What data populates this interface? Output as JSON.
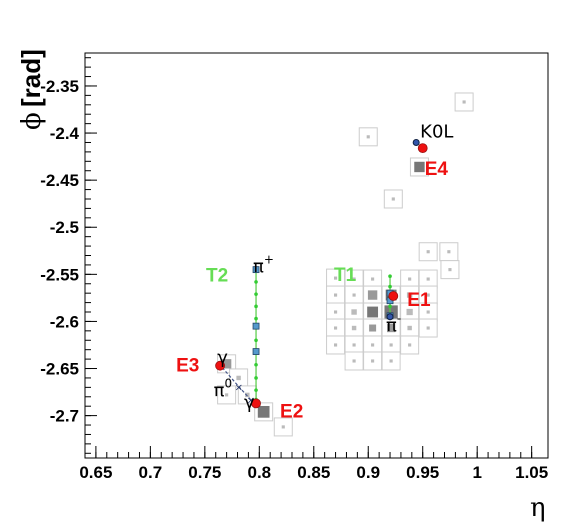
{
  "chart_data": {
    "type": "scatter",
    "xlabel": "η",
    "ylabel_symbol": "ϕ",
    "ylabel_unit": "[rad]",
    "xlim": [
      0.64,
      1.065
    ],
    "ylim": [
      -2.745,
      -2.315
    ],
    "xticks": [
      {
        "v": 0.65,
        "label": "0.65"
      },
      {
        "v": 0.7,
        "label": "0.7"
      },
      {
        "v": 0.75,
        "label": "0.75"
      },
      {
        "v": 0.8,
        "label": "0.8"
      },
      {
        "v": 0.85,
        "label": "0.85"
      },
      {
        "v": 0.9,
        "label": "0.9"
      },
      {
        "v": 0.95,
        "label": "0.95"
      },
      {
        "v": 1.0,
        "label": "1"
      },
      {
        "v": 1.05,
        "label": "1.05"
      }
    ],
    "yticks": [
      {
        "v": -2.35,
        "label": "-2.35"
      },
      {
        "v": -2.4,
        "label": "-2.4"
      },
      {
        "v": -2.45,
        "label": "-2.45"
      },
      {
        "v": -2.5,
        "label": "-2.5"
      },
      {
        "v": -2.55,
        "label": "-2.55"
      },
      {
        "v": -2.6,
        "label": "-2.6"
      },
      {
        "v": -2.65,
        "label": "-2.65"
      },
      {
        "v": -2.7,
        "label": "-2.7"
      }
    ],
    "grid": false,
    "cells": [
      {
        "x": 0.988,
        "y": -2.367,
        "e": 0.05
      },
      {
        "x": 0.9,
        "y": -2.404,
        "e": 0.05
      },
      {
        "x": 0.947,
        "y": -2.436,
        "e": 0.55
      },
      {
        "x": 0.923,
        "y": -2.47,
        "e": 0.05
      },
      {
        "x": 0.955,
        "y": -2.526,
        "e": 0.05
      },
      {
        "x": 0.974,
        "y": -2.526,
        "e": 0.05
      },
      {
        "x": 0.975,
        "y": -2.545,
        "e": 0.05
      },
      {
        "x": 0.87,
        "y": -2.554,
        "e": 0.05
      },
      {
        "x": 0.887,
        "y": -2.555,
        "e": 0.05
      },
      {
        "x": 0.904,
        "y": -2.555,
        "e": 0.05
      },
      {
        "x": 0.938,
        "y": -2.555,
        "e": 0.05
      },
      {
        "x": 0.955,
        "y": -2.555,
        "e": 0.05
      },
      {
        "x": 0.87,
        "y": -2.572,
        "e": 0.05
      },
      {
        "x": 0.887,
        "y": -2.572,
        "e": 0.05
      },
      {
        "x": 0.904,
        "y": -2.572,
        "e": 0.45
      },
      {
        "x": 0.921,
        "y": -2.572,
        "e": 0.6
      },
      {
        "x": 0.938,
        "y": -2.572,
        "e": 0.15
      },
      {
        "x": 0.955,
        "y": -2.572,
        "e": 0.05
      },
      {
        "x": 0.87,
        "y": -2.59,
        "e": 0.05
      },
      {
        "x": 0.887,
        "y": -2.59,
        "e": 0.15
      },
      {
        "x": 0.904,
        "y": -2.59,
        "e": 0.6
      },
      {
        "x": 0.921,
        "y": -2.59,
        "e": 0.9
      },
      {
        "x": 0.938,
        "y": -2.59,
        "e": 0.2
      },
      {
        "x": 0.955,
        "y": -2.59,
        "e": 0.05
      },
      {
        "x": 0.87,
        "y": -2.607,
        "e": 0.05
      },
      {
        "x": 0.887,
        "y": -2.607,
        "e": 0.1
      },
      {
        "x": 0.904,
        "y": -2.607,
        "e": 0.25
      },
      {
        "x": 0.921,
        "y": -2.607,
        "e": 0.35
      },
      {
        "x": 0.938,
        "y": -2.607,
        "e": 0.1
      },
      {
        "x": 0.955,
        "y": -2.607,
        "e": 0.05
      },
      {
        "x": 0.87,
        "y": -2.625,
        "e": 0.05
      },
      {
        "x": 0.887,
        "y": -2.625,
        "e": 0.05
      },
      {
        "x": 0.904,
        "y": -2.625,
        "e": 0.05
      },
      {
        "x": 0.921,
        "y": -2.625,
        "e": 0.05
      },
      {
        "x": 0.938,
        "y": -2.625,
        "e": 0.05
      },
      {
        "x": 0.887,
        "y": -2.642,
        "e": 0.05
      },
      {
        "x": 0.904,
        "y": -2.642,
        "e": 0.05
      },
      {
        "x": 0.921,
        "y": -2.642,
        "e": 0.05
      },
      {
        "x": 0.77,
        "y": -2.645,
        "e": 0.45
      },
      {
        "x": 0.781,
        "y": -2.66,
        "e": 0.1
      },
      {
        "x": 0.77,
        "y": -2.678,
        "e": 0.05
      },
      {
        "x": 0.789,
        "y": -2.678,
        "e": 0.1
      },
      {
        "x": 0.804,
        "y": -2.696,
        "e": 0.7
      },
      {
        "x": 0.822,
        "y": -2.712,
        "e": 0.05
      }
    ],
    "tracks": [
      {
        "label": "T2",
        "label_color": "#66dd55",
        "points": [
          {
            "x": 0.797,
            "y": -2.545
          },
          {
            "x": 0.797,
            "y": -2.558
          },
          {
            "x": 0.797,
            "y": -2.571
          },
          {
            "x": 0.797,
            "y": -2.584
          },
          {
            "x": 0.797,
            "y": -2.597
          },
          {
            "x": 0.797,
            "y": -2.606
          },
          {
            "x": 0.797,
            "y": -2.62
          },
          {
            "x": 0.797,
            "y": -2.632
          },
          {
            "x": 0.797,
            "y": -2.646
          },
          {
            "x": 0.797,
            "y": -2.66
          },
          {
            "x": 0.797,
            "y": -2.673
          },
          {
            "x": 0.797,
            "y": -2.683
          }
        ],
        "square_points": [
          {
            "x": 0.797,
            "y": -2.545
          },
          {
            "x": 0.797,
            "y": -2.605
          },
          {
            "x": 0.797,
            "y": -2.632
          }
        ]
      },
      {
        "label": "T1",
        "label_color": "#66dd55",
        "points": [
          {
            "x": 0.92,
            "y": -2.552
          },
          {
            "x": 0.92,
            "y": -2.563
          },
          {
            "x": 0.92,
            "y": -2.574
          },
          {
            "x": 0.92,
            "y": -2.584
          },
          {
            "x": 0.92,
            "y": -2.594
          }
        ],
        "square_points": [
          {
            "x": 0.92,
            "y": -2.57
          },
          {
            "x": 0.92,
            "y": -2.578
          },
          {
            "x": 0.92,
            "y": -2.594
          }
        ]
      }
    ],
    "pi0_decay": [
      {
        "x": 0.766,
        "y": -2.649
      },
      {
        "x": 0.781,
        "y": -2.669
      },
      {
        "x": 0.792,
        "y": -2.683
      },
      {
        "x": 0.797,
        "y": -2.686
      }
    ],
    "clusters": [
      {
        "label": "E1",
        "x": 0.923,
        "y": -2.573,
        "color": "#ee1111"
      },
      {
        "label": "E2",
        "x": 0.797,
        "y": -2.687,
        "color": "#ee1111"
      },
      {
        "label": "E3",
        "x": 0.764,
        "y": -2.647,
        "color": "#ee1111"
      },
      {
        "label": "E4",
        "x": 0.95,
        "y": -2.416,
        "color": "#ee1111"
      }
    ],
    "particles": [
      {
        "name": "K0L",
        "x": 0.944,
        "y": -2.41
      },
      {
        "name": "π",
        "sup": "+",
        "x": 0.797,
        "y": -2.545
      },
      {
        "name": "π",
        "sup": "-",
        "x": 0.92,
        "y": -2.595
      },
      {
        "name": "π",
        "sup": "0",
        "x": 0.781,
        "y": -2.669
      },
      {
        "name": "γ",
        "sup": "",
        "x": 0.766,
        "y": -2.649
      },
      {
        "name": "γ",
        "sup": "",
        "x": 0.797,
        "y": -2.686
      }
    ]
  }
}
